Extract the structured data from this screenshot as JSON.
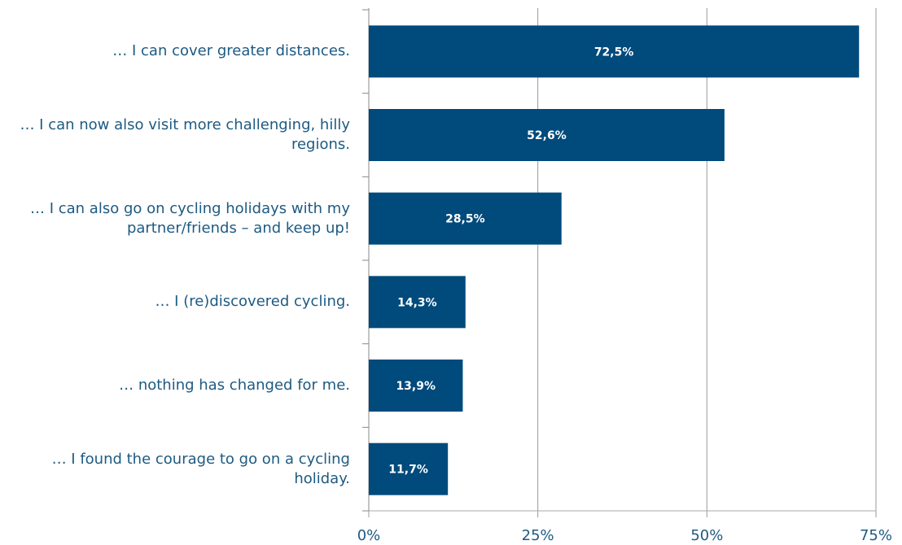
{
  "chart_data": {
    "type": "bar",
    "orientation": "horizontal",
    "categories": [
      "… I can cover greater distances.",
      "… I can now also visit more challenging, hilly regions.",
      "… I can also go on cycling holidays with my partner/friends – and keep up!",
      "… I (re)discovered cycling.",
      "… nothing has changed for me.",
      "… I found the courage to go on a cycling holiday."
    ],
    "values": [
      72.5,
      52.6,
      28.5,
      14.3,
      13.9,
      11.7
    ],
    "value_labels": [
      "72,5%",
      "52,6%",
      "28,5%",
      "14,3%",
      "13,9%",
      "11,7%"
    ],
    "color": "#004a7c",
    "xlim": [
      0,
      75
    ],
    "xticks": [
      {
        "value": 0,
        "label": "0%"
      },
      {
        "value": 25,
        "label": "25%"
      },
      {
        "value": 50,
        "label": "50%"
      },
      {
        "value": 75,
        "label": "75%"
      }
    ],
    "grid": true
  }
}
